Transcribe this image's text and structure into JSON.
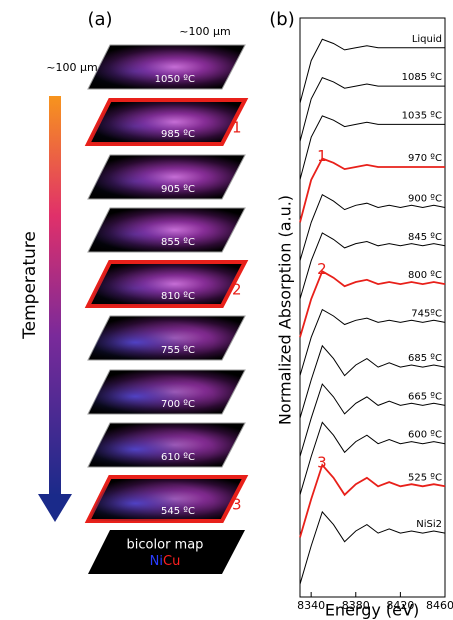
{
  "panel_a": {
    "label": "(a)",
    "scale_x": "~100 µm",
    "scale_y": "~100 µm",
    "arrow_label": "Temperature",
    "maps": [
      {
        "label": "1050 ºC"
      },
      {
        "label": "985 ºC",
        "marker": "1"
      },
      {
        "label": "905 ºC"
      },
      {
        "label": "855 ºC"
      },
      {
        "label": "810 ºC",
        "marker": "2"
      },
      {
        "label": "755 ºC"
      },
      {
        "label": "700 ºC"
      },
      {
        "label": "610 ºC"
      },
      {
        "label": "545 ºC",
        "marker": "3"
      }
    ],
    "bicolor": {
      "label": "bicolor map",
      "ni": "Ni",
      "cu": "Cu"
    }
  },
  "chart_data": {
    "type": "line",
    "panel_label": "(b)",
    "x_label": "Energy (eV)",
    "y_label": "Normalized Absorption (a.u.)",
    "x": [
      8330,
      8340,
      8350,
      8360,
      8370,
      8380,
      8390,
      8400,
      8410,
      8420,
      8430,
      8440,
      8450,
      8460
    ],
    "xlim": [
      8330,
      8460
    ],
    "xticks": [
      8340,
      8380,
      8420,
      8460
    ],
    "ylim": [
      0,
      13.6
    ],
    "series": [
      {
        "name": "Liquid",
        "color": "#000000",
        "values": [
          11.6,
          12.6,
          13.1,
          13.0,
          12.85,
          12.9,
          12.95,
          12.9,
          12.9,
          12.9,
          12.9,
          12.9,
          12.9,
          12.9
        ]
      },
      {
        "name": "1085 ºC",
        "color": "#000000",
        "values": [
          10.7,
          11.7,
          12.2,
          12.1,
          11.95,
          12.0,
          12.05,
          12.0,
          12.0,
          12.0,
          12.0,
          12.0,
          12.0,
          12.0
        ]
      },
      {
        "name": "1035 ºC",
        "color": "#000000",
        "values": [
          9.8,
          10.8,
          11.3,
          11.2,
          11.05,
          11.1,
          11.15,
          11.1,
          11.1,
          11.1,
          11.1,
          11.1,
          11.1,
          11.1
        ]
      },
      {
        "name": "970 ºC",
        "color": "#e8201a",
        "marker": "1",
        "values": [
          8.8,
          9.8,
          10.3,
          10.2,
          10.05,
          10.1,
          10.15,
          10.1,
          10.1,
          10.1,
          10.1,
          10.1,
          10.1,
          10.1
        ]
      },
      {
        "name": "900 ºC",
        "color": "#000000",
        "values": [
          7.9,
          8.8,
          9.45,
          9.3,
          9.1,
          9.2,
          9.25,
          9.15,
          9.2,
          9.15,
          9.2,
          9.15,
          9.2,
          9.15
        ]
      },
      {
        "name": "845 ºC",
        "color": "#000000",
        "values": [
          7.0,
          7.9,
          8.55,
          8.4,
          8.2,
          8.3,
          8.35,
          8.25,
          8.3,
          8.25,
          8.3,
          8.25,
          8.3,
          8.25
        ]
      },
      {
        "name": "800 ºC",
        "color": "#e8201a",
        "marker": "2",
        "values": [
          6.1,
          7.0,
          7.65,
          7.5,
          7.3,
          7.4,
          7.45,
          7.35,
          7.4,
          7.35,
          7.4,
          7.35,
          7.4,
          7.35
        ]
      },
      {
        "name": "745ºC",
        "color": "#000000",
        "values": [
          5.2,
          6.1,
          6.75,
          6.6,
          6.4,
          6.5,
          6.55,
          6.45,
          6.5,
          6.45,
          6.5,
          6.45,
          6.5,
          6.45
        ]
      },
      {
        "name": "685 ºC",
        "color": "#000000",
        "values": [
          4.2,
          5.1,
          5.9,
          5.6,
          5.2,
          5.45,
          5.6,
          5.4,
          5.5,
          5.4,
          5.45,
          5.4,
          5.45,
          5.4
        ]
      },
      {
        "name": "665 ºC",
        "color": "#000000",
        "values": [
          3.3,
          4.2,
          5.0,
          4.7,
          4.3,
          4.55,
          4.7,
          4.5,
          4.6,
          4.5,
          4.55,
          4.5,
          4.55,
          4.5
        ]
      },
      {
        "name": "600 ºC",
        "color": "#000000",
        "values": [
          2.4,
          3.3,
          4.1,
          3.8,
          3.4,
          3.65,
          3.8,
          3.6,
          3.7,
          3.6,
          3.65,
          3.6,
          3.65,
          3.6
        ]
      },
      {
        "name": "525 ºC",
        "color": "#e8201a",
        "marker": "3",
        "values": [
          1.4,
          2.3,
          3.1,
          2.8,
          2.4,
          2.65,
          2.8,
          2.6,
          2.7,
          2.6,
          2.65,
          2.6,
          2.65,
          2.6
        ]
      },
      {
        "name": "NiSi2",
        "color": "#000000",
        "values": [
          0.3,
          1.2,
          2.0,
          1.7,
          1.3,
          1.55,
          1.7,
          1.5,
          1.6,
          1.5,
          1.55,
          1.5,
          1.55,
          1.5
        ]
      }
    ]
  }
}
